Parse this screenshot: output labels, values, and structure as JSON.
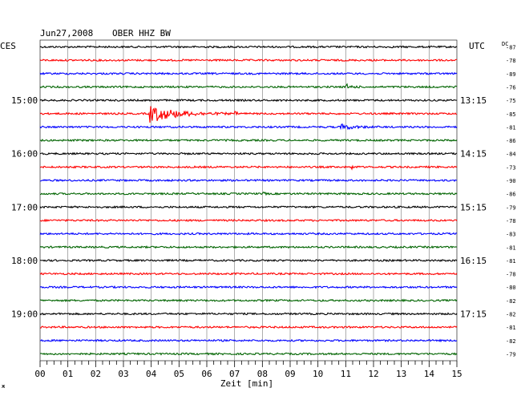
{
  "header": {
    "date": "Jun27,2008",
    "station": "OBER HHZ BW",
    "left_zone": "CES",
    "right_zone": "UTC",
    "dc_label": "DC"
  },
  "chart_data": {
    "type": "line",
    "title": "Jun27,2008   OBER HHZ BW",
    "xlabel": "Zeit [min]",
    "x_ticks": [
      "00",
      "01",
      "02",
      "03",
      "04",
      "05",
      "06",
      "07",
      "08",
      "09",
      "10",
      "11",
      "12",
      "13",
      "14",
      "15"
    ],
    "xlim": [
      0,
      15
    ],
    "grid": true,
    "trace_colors": [
      "#000000",
      "#ff0000",
      "#0000ff",
      "#006400"
    ],
    "hour_labels_left": [
      {
        "row": 4,
        "text": "15:00"
      },
      {
        "row": 8,
        "text": "16:00"
      },
      {
        "row": 12,
        "text": "17:00"
      },
      {
        "row": 16,
        "text": "18:00"
      },
      {
        "row": 20,
        "text": "19:00"
      }
    ],
    "hour_labels_right": [
      {
        "row": 4,
        "text": "13:15"
      },
      {
        "row": 8,
        "text": "14:15"
      },
      {
        "row": 12,
        "text": "15:15"
      },
      {
        "row": 16,
        "text": "16:15"
      },
      {
        "row": 20,
        "text": "17:15"
      }
    ],
    "dc_offsets": [
      "-87",
      "-78",
      "-89",
      "-76",
      "-75",
      "-85",
      "-81",
      "-86",
      "-84",
      "-73",
      "-90",
      "-86",
      "-79",
      "-78",
      "-83",
      "-81",
      "-81",
      "-78",
      "-80",
      "-82",
      "-82",
      "-81",
      "-82",
      "-79"
    ],
    "events": [
      {
        "row": 3,
        "start_min": 11.0,
        "end_min": 11.6,
        "amplitude": 0.5
      },
      {
        "row": 5,
        "start_min": 3.95,
        "end_min": 6.8,
        "amplitude": 1.6
      },
      {
        "row": 5,
        "start_min": 7.0,
        "end_min": 7.3,
        "amplitude": 0.35
      },
      {
        "row": 6,
        "start_min": 10.8,
        "end_min": 12.2,
        "amplitude": 0.5
      },
      {
        "row": 9,
        "start_min": 11.2,
        "end_min": 11.5,
        "amplitude": 0.35
      },
      {
        "row": 11,
        "start_min": 8.0,
        "end_min": 8.3,
        "amplitude": 0.25
      }
    ]
  }
}
